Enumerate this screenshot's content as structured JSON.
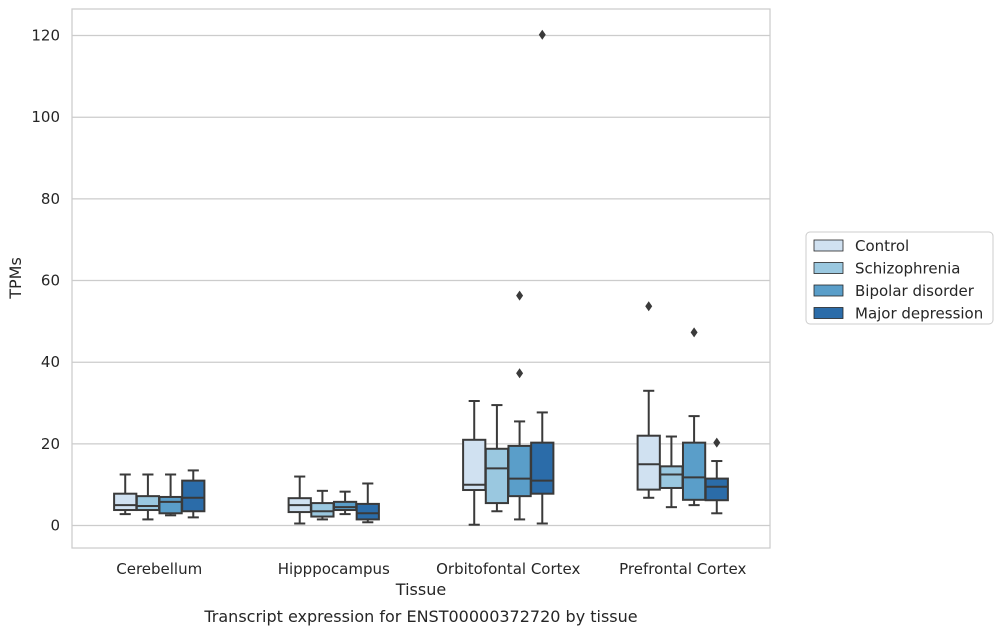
{
  "chart_data": {
    "type": "box",
    "xlabel": "Tissue",
    "ylabel": "TPMs",
    "caption": "Transcript expression for ENST00000372720 by tissue",
    "ylim": [
      -5.5,
      126.5
    ],
    "yticks": [
      0,
      20,
      40,
      60,
      80,
      100,
      120
    ],
    "grid": true,
    "legend_position": "right",
    "categories": [
      "Cerebellum",
      "Hipppocampus",
      "Orbitofontal Cortex",
      "Prefrontal Cortex"
    ],
    "series": [
      {
        "name": "Control",
        "color": "#d0e1f1",
        "boxes": [
          {
            "whislo": 2.8,
            "q1": 3.8,
            "med": 5.0,
            "q3": 7.8,
            "whishi": 12.5,
            "fliers": []
          },
          {
            "whislo": 0.5,
            "q1": 3.3,
            "med": 5.0,
            "q3": 6.7,
            "whishi": 12.0,
            "fliers": []
          },
          {
            "whislo": 0.2,
            "q1": 8.7,
            "med": 10.0,
            "q3": 21.0,
            "whishi": 30.5,
            "fliers": []
          },
          {
            "whislo": 6.8,
            "q1": 8.8,
            "med": 15.0,
            "q3": 22.0,
            "whishi": 33.0,
            "fliers": [
              53.7
            ]
          }
        ]
      },
      {
        "name": "Schizophrenia",
        "color": "#9ac8e0",
        "boxes": [
          {
            "whislo": 1.5,
            "q1": 3.8,
            "med": 4.8,
            "q3": 7.2,
            "whishi": 12.5,
            "fliers": []
          },
          {
            "whislo": 1.5,
            "q1": 2.2,
            "med": 3.5,
            "q3": 5.5,
            "whishi": 8.5,
            "fliers": []
          },
          {
            "whislo": 3.5,
            "q1": 5.5,
            "med": 14.0,
            "q3": 18.8,
            "whishi": 29.5,
            "fliers": []
          },
          {
            "whislo": 4.5,
            "q1": 9.2,
            "med": 12.5,
            "q3": 14.5,
            "whishi": 21.8,
            "fliers": []
          }
        ]
      },
      {
        "name": "Bipolar disorder",
        "color": "#5a9ec9",
        "boxes": [
          {
            "whislo": 2.5,
            "q1": 3.0,
            "med": 5.8,
            "q3": 7.0,
            "whishi": 12.5,
            "fliers": []
          },
          {
            "whislo": 2.8,
            "q1": 3.8,
            "med": 4.5,
            "q3": 5.8,
            "whishi": 8.3,
            "fliers": []
          },
          {
            "whislo": 1.5,
            "q1": 7.2,
            "med": 11.5,
            "q3": 19.5,
            "whishi": 25.5,
            "fliers": [
              56.3,
              37.3
            ]
          },
          {
            "whislo": 5.0,
            "q1": 6.3,
            "med": 11.8,
            "q3": 20.3,
            "whishi": 26.8,
            "fliers": [
              47.3
            ]
          }
        ]
      },
      {
        "name": "Major depression",
        "color": "#2b6ca9",
        "boxes": [
          {
            "whislo": 2.0,
            "q1": 3.5,
            "med": 6.8,
            "q3": 11.0,
            "whishi": 13.5,
            "fliers": []
          },
          {
            "whislo": 0.8,
            "q1": 1.5,
            "med": 3.0,
            "q3": 5.3,
            "whishi": 10.3,
            "fliers": []
          },
          {
            "whislo": 0.5,
            "q1": 7.8,
            "med": 11.0,
            "q3": 20.3,
            "whishi": 27.7,
            "fliers": [
              120.2
            ]
          },
          {
            "whislo": 3.0,
            "q1": 6.2,
            "med": 9.5,
            "q3": 11.5,
            "whishi": 15.8,
            "fliers": [
              20.3
            ]
          }
        ]
      }
    ]
  }
}
